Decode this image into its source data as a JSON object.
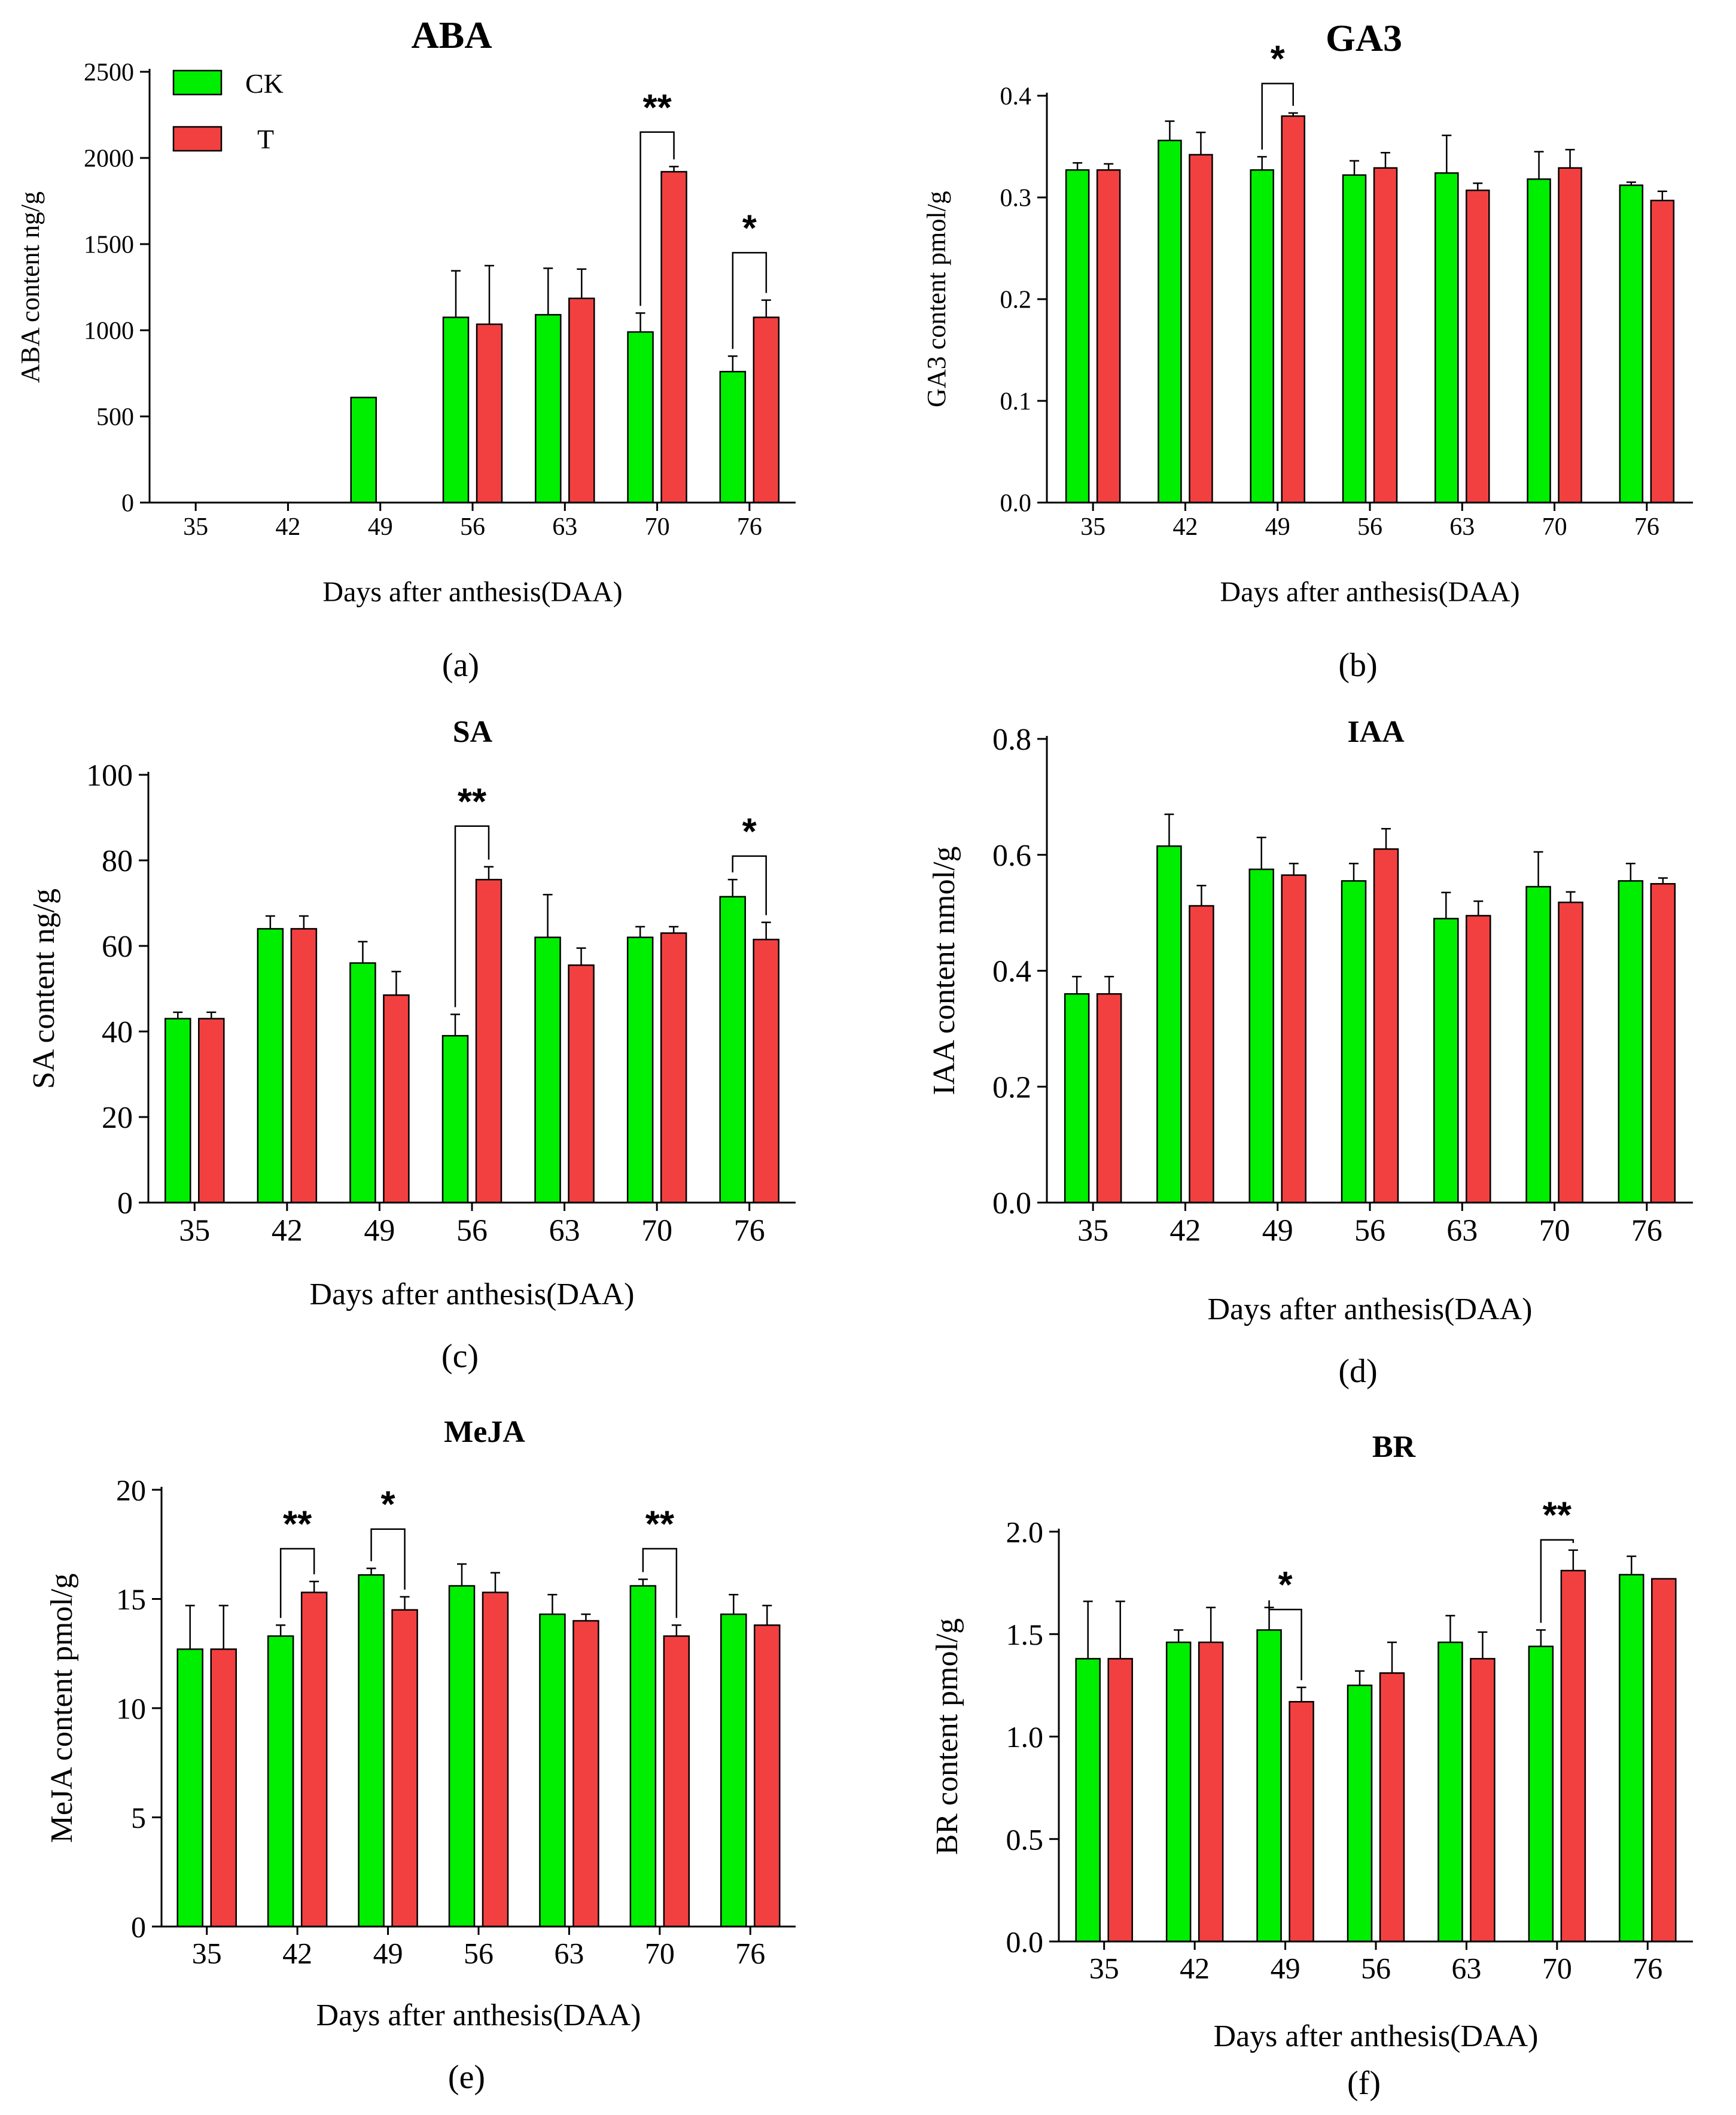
{
  "colors": {
    "CK": "#00ee00",
    "T": "#f24040",
    "axis": "#000000"
  },
  "legend": {
    "CK": "CK",
    "T": "T"
  },
  "chart_data": [
    {
      "panel": "(a)",
      "type": "bar",
      "title": "ABA",
      "ylabel": "ABA content     ng/g",
      "xlabel": "Days after anthesis(DAA)",
      "categories": [
        "35",
        "42",
        "49",
        "56",
        "63",
        "70",
        "76"
      ],
      "ylim": [
        0,
        2500
      ],
      "yticks": [
        0,
        500,
        1000,
        1500,
        2000,
        2500
      ],
      "series": [
        {
          "name": "CK",
          "values": [
            0,
            0,
            610,
            1075,
            1090,
            990,
            760
          ],
          "errors": [
            0,
            0,
            0,
            270,
            270,
            110,
            90
          ]
        },
        {
          "name": "T",
          "values": [
            0,
            0,
            0,
            1035,
            1185,
            1920,
            1075
          ],
          "errors": [
            0,
            0,
            0,
            340,
            170,
            30,
            100
          ]
        }
      ],
      "annotations": [
        {
          "category": "70",
          "label": "**",
          "bracket_top": 2150
        },
        {
          "category": "76",
          "label": "*",
          "bracket_top": 1450
        }
      ]
    },
    {
      "panel": "(b)",
      "type": "bar",
      "title": "GA3",
      "ylabel": "GA3 content pmol/g",
      "xlabel": "Days after anthesis(DAA)",
      "categories": [
        "35",
        "42",
        "49",
        "56",
        "63",
        "70",
        "76"
      ],
      "ylim": [
        0,
        0.4
      ],
      "yticks": [
        0.0,
        0.1,
        0.2,
        0.3,
        0.4
      ],
      "series": [
        {
          "name": "CK",
          "values": [
            0.327,
            0.356,
            0.327,
            0.322,
            0.324,
            0.318,
            0.312
          ],
          "errors": [
            0.007,
            0.019,
            0.013,
            0.014,
            0.037,
            0.027,
            0.003
          ]
        },
        {
          "name": "T",
          "values": [
            0.327,
            0.342,
            0.38,
            0.329,
            0.307,
            0.329,
            0.297
          ],
          "errors": [
            0.006,
            0.022,
            0.003,
            0.015,
            0.007,
            0.018,
            0.009
          ]
        }
      ],
      "annotations": [
        {
          "category": "49",
          "label": "*",
          "bracket_top": 0.412
        }
      ]
    },
    {
      "panel": "(c)",
      "type": "bar",
      "title": "SA",
      "ylabel": "SA content ng/g",
      "xlabel": "Days after anthesis(DAA)",
      "categories": [
        "35",
        "42",
        "49",
        "56",
        "63",
        "70",
        "76"
      ],
      "ylim": [
        0,
        100
      ],
      "yticks": [
        0,
        20,
        40,
        60,
        80,
        100
      ],
      "series": [
        {
          "name": "CK",
          "values": [
            43,
            64,
            56,
            39,
            62,
            62,
            71.5
          ],
          "errors": [
            1.5,
            3,
            5,
            5,
            10,
            2.5,
            4
          ]
        },
        {
          "name": "T",
          "values": [
            43,
            64,
            48.5,
            75.5,
            55.5,
            63,
            61.5
          ],
          "errors": [
            1.5,
            3,
            5.5,
            3,
            4,
            1.5,
            4
          ]
        }
      ],
      "annotations": [
        {
          "category": "56",
          "label": "**",
          "bracket_top": 88
        },
        {
          "category": "76",
          "label": "*",
          "bracket_top": 81
        }
      ]
    },
    {
      "panel": "(d)",
      "type": "bar",
      "title": "IAA",
      "ylabel": "IAA content nmol/g",
      "xlabel": "Days after anthesis(DAA)",
      "categories": [
        "35",
        "42",
        "49",
        "56",
        "63",
        "70",
        "76"
      ],
      "ylim": [
        0,
        0.8
      ],
      "yticks": [
        0.0,
        0.2,
        0.4,
        0.6,
        0.8
      ],
      "series": [
        {
          "name": "CK",
          "values": [
            0.36,
            0.615,
            0.575,
            0.555,
            0.49,
            0.545,
            0.555
          ],
          "errors": [
            0.03,
            0.055,
            0.055,
            0.03,
            0.045,
            0.06,
            0.03
          ]
        },
        {
          "name": "T",
          "values": [
            0.36,
            0.512,
            0.565,
            0.61,
            0.495,
            0.518,
            0.55
          ],
          "errors": [
            0.03,
            0.035,
            0.02,
            0.035,
            0.025,
            0.018,
            0.01
          ]
        }
      ],
      "annotations": []
    },
    {
      "panel": "(e)",
      "type": "bar",
      "title": "MeJA",
      "ylabel": "MeJA content pmol/g",
      "xlabel": "Days after anthesis(DAA)",
      "categories": [
        "35",
        "42",
        "49",
        "56",
        "63",
        "70",
        "76"
      ],
      "ylim": [
        0,
        20
      ],
      "yticks": [
        0,
        5,
        10,
        15,
        20
      ],
      "series": [
        {
          "name": "CK",
          "values": [
            12.7,
            13.3,
            16.1,
            15.6,
            14.3,
            15.6,
            14.3
          ],
          "errors": [
            2.0,
            0.5,
            0.3,
            1.0,
            0.9,
            0.3,
            0.9
          ]
        },
        {
          "name": "T",
          "values": [
            12.7,
            15.3,
            14.5,
            15.3,
            14.0,
            13.3,
            13.8
          ],
          "errors": [
            2.0,
            0.5,
            0.6,
            0.9,
            0.3,
            0.5,
            0.9
          ]
        }
      ],
      "annotations": [
        {
          "category": "42",
          "label": "**",
          "bracket_top": 17.3
        },
        {
          "category": "49",
          "label": "*",
          "bracket_top": 18.2
        },
        {
          "category": "70",
          "label": "**",
          "bracket_top": 17.3
        }
      ]
    },
    {
      "panel": "(f)",
      "type": "bar",
      "title": "BR",
      "ylabel": "BR content pmol/g",
      "xlabel": "Days after anthesis(DAA)",
      "categories": [
        "35",
        "42",
        "49",
        "56",
        "63",
        "70",
        "76"
      ],
      "ylim": [
        0,
        2.0
      ],
      "yticks": [
        0.0,
        0.5,
        1.0,
        1.5,
        2.0
      ],
      "series": [
        {
          "name": "CK",
          "values": [
            1.38,
            1.46,
            1.52,
            1.25,
            1.46,
            1.44,
            1.79
          ],
          "errors": [
            0.28,
            0.06,
            0.11,
            0.07,
            0.13,
            0.08,
            0.09
          ]
        },
        {
          "name": "T",
          "values": [
            1.38,
            1.46,
            1.17,
            1.31,
            1.38,
            1.81,
            1.77
          ],
          "errors": [
            0.28,
            0.17,
            0.07,
            0.15,
            0.13,
            0.1,
            0.0
          ]
        }
      ],
      "annotations": [
        {
          "category": "49",
          "label": "*",
          "bracket_top": 1.62
        },
        {
          "category": "70",
          "label": "**",
          "bracket_top": 1.96
        }
      ]
    }
  ]
}
